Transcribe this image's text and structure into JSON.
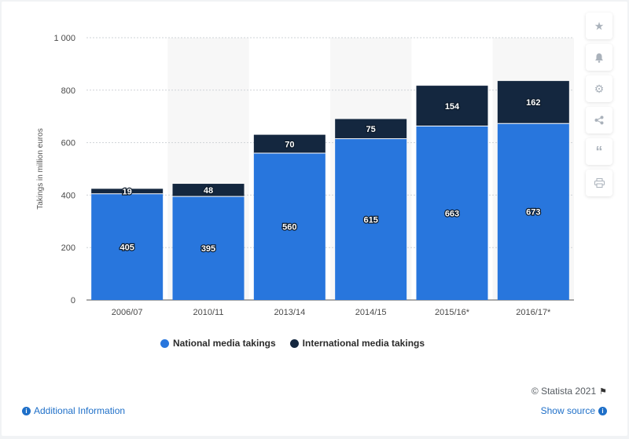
{
  "chart_data": {
    "type": "bar",
    "stacked": true,
    "categories": [
      "2006/07",
      "2010/11",
      "2013/14",
      "2014/15",
      "2015/16*",
      "2016/17*"
    ],
    "series": [
      {
        "name": "National media takings",
        "values": [
          405,
          395,
          560,
          615,
          663,
          673
        ],
        "color": "#2876dd"
      },
      {
        "name": "International media takings",
        "values": [
          19,
          48,
          70,
          75,
          154,
          162
        ],
        "color": "#14273f"
      }
    ],
    "ylabel": "Takings in million euros",
    "ylim": [
      0,
      1000
    ],
    "yticks": [
      0,
      200,
      400,
      600,
      800,
      1000
    ],
    "ytick_labels": [
      "0",
      "200",
      "400",
      "600",
      "800",
      "1 000"
    ],
    "grid": true,
    "legend_position": "bottom"
  },
  "legend": {
    "national": "National media takings",
    "international": "International media takings",
    "national_color": "#2876dd",
    "international_color": "#14273f"
  },
  "sidebar": {
    "icons": [
      "star-icon",
      "bell-icon",
      "gear-icon",
      "share-icon",
      "quote-icon",
      "print-icon"
    ]
  },
  "footer": {
    "copyright": "© Statista 2021",
    "additional_info": "Additional Information",
    "show_source": "Show source"
  }
}
